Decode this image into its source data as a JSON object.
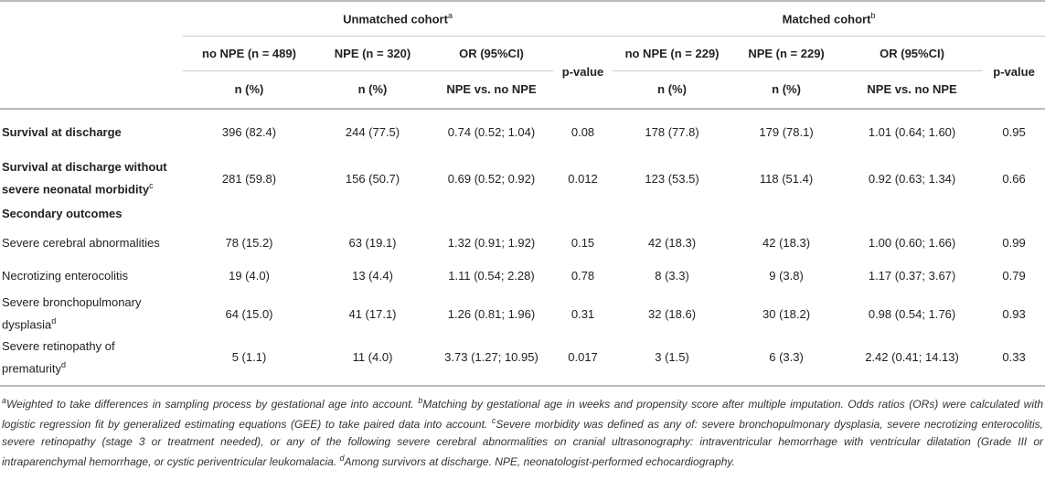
{
  "header": {
    "unmatched": "Unmatched cohort",
    "unmatched_sup": "a",
    "matched": "Matched cohort",
    "matched_sup": "b",
    "cols": [
      "no NPE (",
      "n",
      " = 489)",
      "NPE (",
      "n",
      " = 320)"
    ],
    "c1": "no NPE (n = 489)",
    "c2": "NPE (n = 320)",
    "c3": "OR (95%CI)",
    "c4": "p-value",
    "c5": "no NPE (n = 229)",
    "c6": "NPE (n = 229)",
    "c7": "OR (95%CI)",
    "c8": "p-value",
    "sub_n": "n (%)",
    "sub_or": "NPE vs. no NPE"
  },
  "rows": [
    {
      "label": "Survival at discharge",
      "sup": "",
      "bold": true,
      "v": [
        "396 (82.4)",
        "244 (77.5)",
        "0.74 (0.52; 1.04)",
        "0.08",
        "178 (77.8)",
        "179 (78.1)",
        "1.01 (0.64; 1.60)",
        "0.95"
      ]
    },
    {
      "label": "Survival at discharge without severe neonatal morbidity",
      "sup": "c",
      "bold": true,
      "v": [
        "281 (59.8)",
        "156 (50.7)",
        "0.69 (0.52; 0.92)",
        "0.012",
        "123 (53.5)",
        "118 (51.4)",
        "0.92 (0.63; 1.34)",
        "0.66"
      ]
    },
    {
      "label": "Secondary outcomes",
      "sup": "",
      "bold": true,
      "v": [
        "",
        "",
        "",
        "",
        "",
        "",
        "",
        ""
      ]
    },
    {
      "label": "Severe cerebral abnormalities",
      "sup": "",
      "bold": false,
      "v": [
        "78 (15.2)",
        "63 (19.1)",
        "1.32 (0.91; 1.92)",
        "0.15",
        "42 (18.3)",
        "42 (18.3)",
        "1.00 (0.60; 1.66)",
        "0.99"
      ]
    },
    {
      "label": "Necrotizing enterocolitis",
      "sup": "",
      "bold": false,
      "v": [
        "19 (4.0)",
        "13 (4.4)",
        "1.11 (0.54; 2.28)",
        "0.78",
        "8 (3.3)",
        "9 (3.8)",
        "1.17 (0.37; 3.67)",
        "0.79"
      ]
    },
    {
      "label": "Severe bronchopulmonary dysplasia",
      "sup": "d",
      "bold": false,
      "v": [
        "64 (15.0)",
        "41 (17.1)",
        "1.26 (0.81; 1.96)",
        "0.31",
        "32 (18.6)",
        "30 (18.2)",
        "0.98 (0.54; 1.76)",
        "0.93"
      ]
    },
    {
      "label": "Severe retinopathy of prematurity",
      "sup": "d",
      "bold": false,
      "v": [
        "5 (1.1)",
        "11 (4.0)",
        "3.73 (1.27; 10.95)",
        "0.017",
        "3 (1.5)",
        "6 (3.3)",
        "2.42 (0.41; 14.13)",
        "0.33"
      ]
    }
  ],
  "footnotes": [
    {
      "sup": "a",
      "text": "Weighted to take differences in sampling process by gestational age into account. "
    },
    {
      "sup": "b",
      "text": "Matching by gestational age in weeks and propensity score after multiple imputation. Odds ratios (ORs) were calculated with logistic regression fit by generalized estimating equations (GEE) to take paired data into account. "
    },
    {
      "sup": "c",
      "text": "Severe morbidity was defined as any of: severe bronchopulmonary dysplasia, severe necrotizing enterocolitis, severe retinopathy (stage 3 or treatment needed), or any of the following severe cerebral abnormalities on cranial ultrasonography: intraventricular hemorrhage with ventricular dilatation (Grade III or intraparenchymal hemorrhage, or cystic periventricular leukomalacia. "
    },
    {
      "sup": "d",
      "text": "Among survivors at discharge. NPE, neonatologist-performed echocardiography."
    }
  ]
}
